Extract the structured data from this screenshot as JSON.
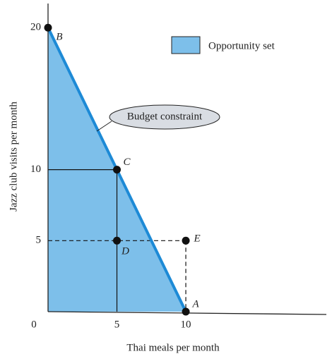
{
  "chart_data": {
    "type": "line",
    "x_label": "Thai meals per month",
    "y_label": "Jazz club visits per month",
    "xlim": [
      0,
      20.2
    ],
    "ylim": [
      0,
      21.7
    ],
    "xticks": [
      0,
      5,
      10
    ],
    "yticks": [
      5,
      10,
      20
    ],
    "series": [
      {
        "name": "Budget constraint",
        "color": "#1d8ad6",
        "x": [
          0,
          10
        ],
        "values": [
          20,
          0
        ]
      }
    ],
    "area": {
      "name": "Opportunity set",
      "color": "#7dbfea"
    },
    "points": [
      {
        "label": "B",
        "x": 0,
        "y": 20
      },
      {
        "label": "C",
        "x": 5,
        "y": 10
      },
      {
        "label": "D",
        "x": 5,
        "y": 5
      },
      {
        "label": "E",
        "x": 10,
        "y": 5
      },
      {
        "label": "A",
        "x": 10,
        "y": 0
      }
    ]
  }
}
